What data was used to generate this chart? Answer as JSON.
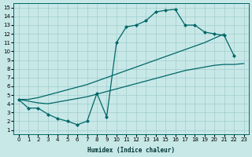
{
  "xlabel": "Humidex (Indice chaleur)",
  "bg_color": "#c8e8e8",
  "grid_color": "#a0cccc",
  "line_color": "#006666",
  "xlim": [
    -0.5,
    23.5
  ],
  "ylim": [
    0.5,
    15.5
  ],
  "xticks": [
    0,
    1,
    2,
    3,
    4,
    5,
    6,
    7,
    8,
    9,
    10,
    11,
    12,
    13,
    14,
    15,
    16,
    17,
    18,
    19,
    20,
    21,
    22,
    23
  ],
  "yticks": [
    1,
    2,
    3,
    4,
    5,
    6,
    7,
    8,
    9,
    10,
    11,
    12,
    13,
    14,
    15
  ],
  "peak_x": [
    0,
    1,
    2,
    3,
    4,
    5,
    6,
    7,
    8,
    9,
    10,
    11,
    12,
    13,
    14,
    15,
    16,
    17,
    18,
    19,
    20,
    21,
    22
  ],
  "peak_y": [
    4.5,
    3.5,
    3.5,
    2.8,
    2.3,
    2.0,
    1.6,
    2.0,
    5.2,
    2.5,
    11.0,
    12.8,
    13.0,
    13.5,
    14.5,
    14.7,
    14.8,
    13.0,
    13.0,
    12.2,
    12.0,
    11.8,
    9.5
  ],
  "line_low_x": [
    0,
    1,
    2,
    3,
    4,
    5,
    6,
    7,
    8,
    9,
    10,
    11,
    12,
    13,
    14,
    15,
    16,
    17,
    18,
    19,
    20,
    21,
    22,
    23
  ],
  "line_low_y": [
    4.5,
    4.3,
    4.1,
    4.0,
    4.2,
    4.4,
    4.6,
    4.8,
    5.1,
    5.4,
    5.7,
    6.0,
    6.3,
    6.6,
    6.9,
    7.2,
    7.5,
    7.8,
    8.0,
    8.2,
    8.4,
    8.5,
    8.5,
    8.6
  ],
  "line_high_x": [
    0,
    1,
    2,
    3,
    4,
    5,
    6,
    7,
    8,
    9,
    10,
    11,
    12,
    13,
    14,
    15,
    16,
    17,
    18,
    19,
    20,
    21
  ],
  "line_high_y": [
    4.5,
    4.5,
    4.7,
    5.0,
    5.3,
    5.6,
    5.9,
    6.2,
    6.6,
    7.0,
    7.4,
    7.8,
    8.2,
    8.6,
    9.0,
    9.4,
    9.8,
    10.2,
    10.6,
    11.0,
    11.5,
    12.0
  ]
}
